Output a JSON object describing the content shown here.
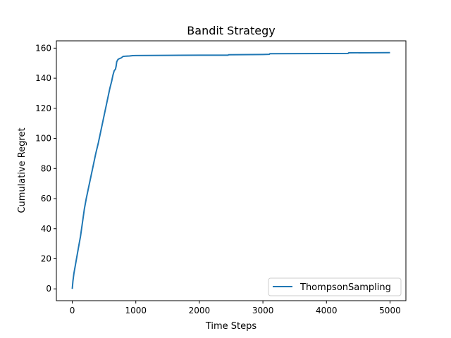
{
  "chart_data": {
    "type": "line",
    "title": "Bandit Strategy",
    "xlabel": "Time Steps",
    "ylabel": "Cumulative Regret",
    "xlim": [
      -250,
      5250
    ],
    "ylim": [
      -7.85,
      164.85
    ],
    "xticks": [
      0,
      1000,
      2000,
      3000,
      4000,
      5000
    ],
    "yticks": [
      0,
      20,
      40,
      60,
      80,
      100,
      120,
      140,
      160
    ],
    "grid": false,
    "legend_position": "lower right",
    "series": [
      {
        "name": "ThompsonSampling",
        "color": "#1f77b4",
        "x": [
          0,
          10,
          25,
          50,
          75,
          100,
          130,
          160,
          190,
          220,
          250,
          290,
          330,
          370,
          410,
          450,
          490,
          530,
          560,
          590,
          620,
          640,
          660,
          680,
          690,
          700,
          720,
          740,
          770,
          800,
          850,
          900,
          950,
          1000,
          1500,
          2000,
          2450,
          2460,
          3000,
          3100,
          3110,
          4000,
          4340,
          4350,
          5000
        ],
        "y": [
          0,
          5,
          10,
          16,
          22,
          28,
          35,
          44,
          53,
          60,
          66,
          74,
          82,
          90,
          97,
          105,
          113,
          121,
          127,
          133,
          138,
          142,
          145,
          146,
          148,
          151,
          152.5,
          153,
          153.5,
          154.5,
          154.7,
          154.8,
          155,
          155.1,
          155.2,
          155.3,
          155.3,
          155.6,
          155.8,
          155.9,
          156.3,
          156.4,
          156.5,
          156.9,
          157
        ]
      }
    ]
  }
}
